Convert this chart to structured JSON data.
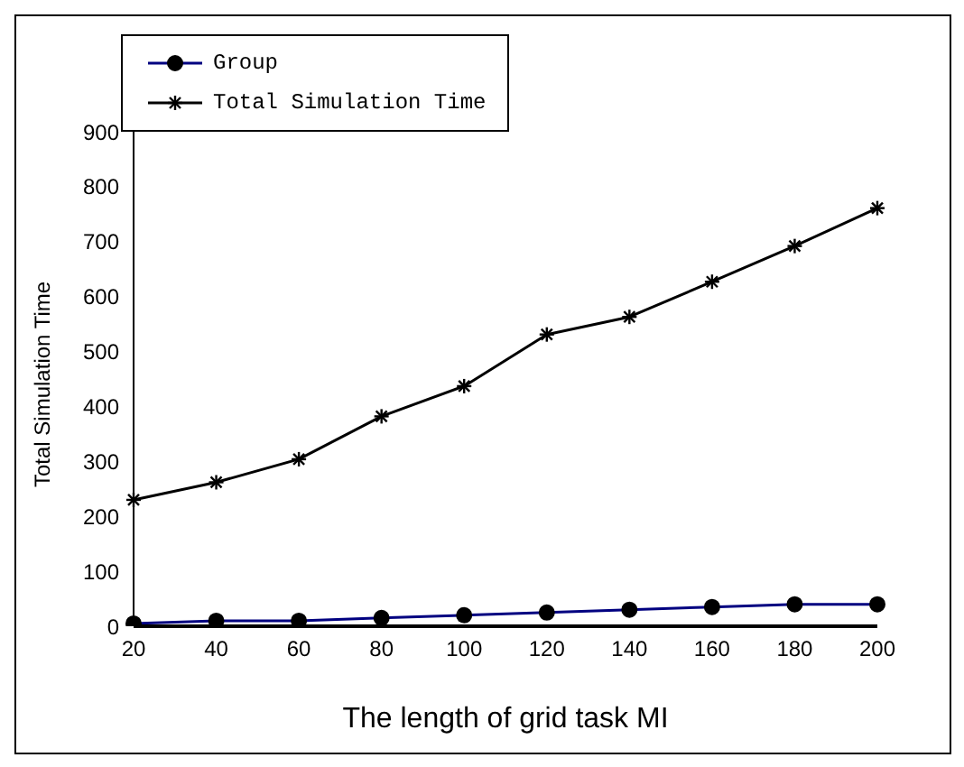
{
  "chart_data": {
    "type": "line",
    "xlabel": "The length of grid task MI",
    "ylabel": "Total Simulation Time",
    "x": [
      20,
      40,
      60,
      80,
      100,
      120,
      140,
      160,
      180,
      200
    ],
    "series": [
      {
        "name": "Group",
        "color": "#000080",
        "marker": "circle",
        "values": [
          5,
          10,
          10,
          15,
          20,
          25,
          30,
          35,
          40,
          40
        ]
      },
      {
        "name": "Total Simulation Time",
        "color": "#000000",
        "marker": "cross",
        "values": [
          230,
          262,
          304,
          382,
          437,
          531,
          563,
          627,
          692,
          761
        ]
      }
    ],
    "xlim": [
      20,
      200
    ],
    "xticks": [
      20,
      40,
      60,
      80,
      100,
      120,
      140,
      160,
      180,
      200
    ],
    "ylim": [
      0,
      900
    ],
    "yticks": [
      0,
      100,
      200,
      300,
      400,
      500,
      600,
      700,
      800,
      900
    ],
    "grid": false,
    "legend": "top left",
    "line_style": "solid"
  }
}
